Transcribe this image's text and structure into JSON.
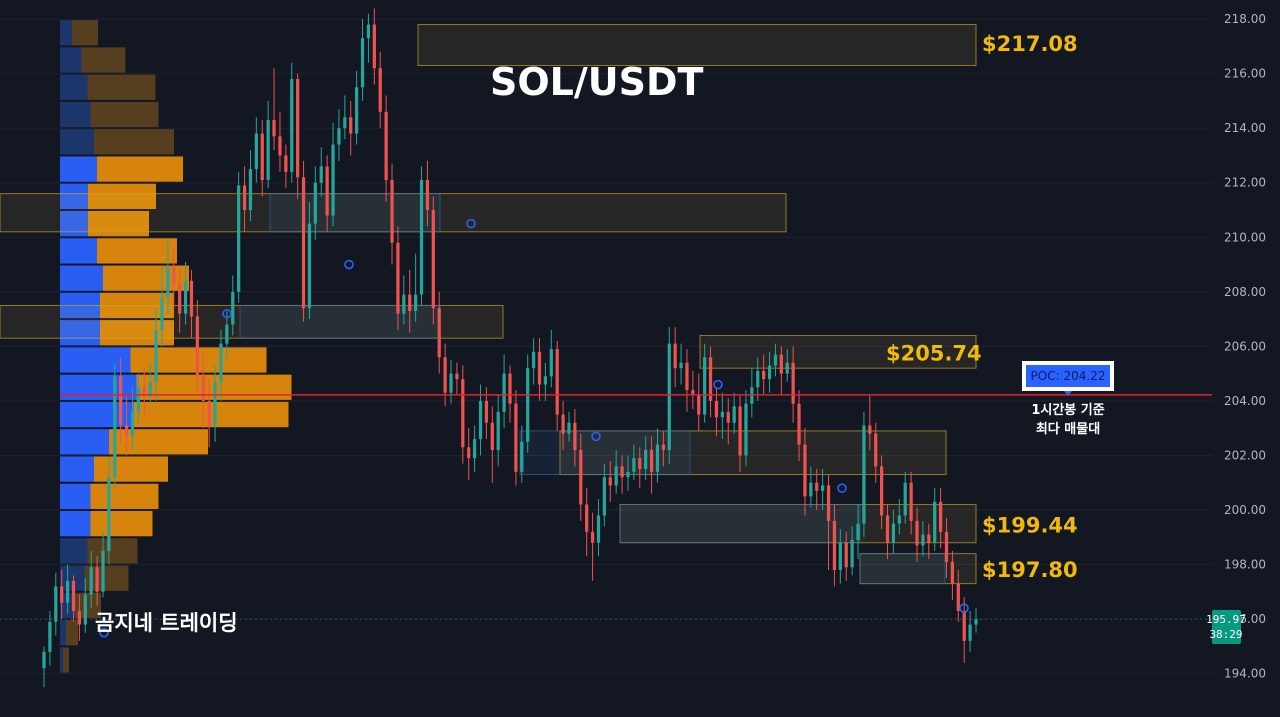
{
  "chart_data": {
    "type": "candlestick",
    "title": "SOL/USDT",
    "watermark": "곰지네 트레이딩",
    "y_axis": {
      "ticks": [
        "218.00",
        "216.00",
        "214.00",
        "212.00",
        "210.00",
        "208.00",
        "206.00",
        "204.00",
        "202.00",
        "200.00",
        "198.00",
        "196.00",
        "194.00"
      ],
      "range": [
        193.4,
        218.7
      ]
    },
    "current_price": {
      "value": "195.97",
      "countdown": "38:29",
      "color": "#089981"
    },
    "poc": {
      "label": "POC: 204.22",
      "value": 204.22,
      "note_line1": "1시간봉 기준",
      "note_line2": "최다 매물대",
      "line_color": "#e0232e"
    },
    "price_labels": [
      {
        "text": "$217.08",
        "value": 217.08
      },
      {
        "text": "$205.74",
        "value": 205.74
      },
      {
        "text": "$199.44",
        "value": 199.44
      },
      {
        "text": "$197.80",
        "value": 197.8
      }
    ],
    "resistance_zones": [
      {
        "top": 217.8,
        "bottom": 216.3
      },
      {
        "top": 211.6,
        "bottom": 210.2
      },
      {
        "top": 207.5,
        "bottom": 206.3
      },
      {
        "top": 206.4,
        "bottom": 205.2
      },
      {
        "top": 202.9,
        "bottom": 201.3
      },
      {
        "top": 200.2,
        "bottom": 198.8
      },
      {
        "top": 198.4,
        "bottom": 197.3
      }
    ],
    "liquidity_zones": [
      {
        "top": 211.6,
        "bottom": 210.2
      },
      {
        "top": 207.5,
        "bottom": 206.3
      },
      {
        "top": 202.9,
        "bottom": 201.3
      },
      {
        "top": 200.2,
        "bottom": 198.8
      },
      {
        "top": 198.4,
        "bottom": 197.3
      }
    ],
    "volume_profile": [
      {
        "price": 217.5,
        "buy": 24,
        "sell": 26
      },
      {
        "price": 216.5,
        "buy": 43,
        "sell": 44
      },
      {
        "price": 215.5,
        "buy": 55,
        "sell": 68
      },
      {
        "price": 214.5,
        "buy": 61,
        "sell": 68
      },
      {
        "price": 213.5,
        "buy": 68,
        "sell": 80
      },
      {
        "price": 212.5,
        "buy": 74,
        "sell": 86
      },
      {
        "price": 211.5,
        "buy": 56,
        "sell": 68
      },
      {
        "price": 210.5,
        "buy": 56,
        "sell": 61
      },
      {
        "price": 209.5,
        "buy": 74,
        "sell": 80
      },
      {
        "price": 208.5,
        "buy": 86,
        "sell": 86
      },
      {
        "price": 207.5,
        "buy": 80,
        "sell": 74
      },
      {
        "price": 206.5,
        "buy": 80,
        "sell": 74
      },
      {
        "price": 205.5,
        "buy": 141,
        "sell": 136
      },
      {
        "price": 204.5,
        "buy": 153,
        "sell": 155
      },
      {
        "price": 203.5,
        "buy": 147,
        "sell": 155
      },
      {
        "price": 202.5,
        "buy": 98,
        "sell": 99
      },
      {
        "price": 201.5,
        "buy": 68,
        "sell": 74
      },
      {
        "price": 200.5,
        "buy": 61,
        "sell": 68
      },
      {
        "price": 199.5,
        "buy": 61,
        "sell": 62
      },
      {
        "price": 198.5,
        "buy": 55,
        "sell": 50
      },
      {
        "price": 197.5,
        "buy": 49,
        "sell": 44
      },
      {
        "price": 196.5,
        "buy": 30,
        "sell": 26
      },
      {
        "price": 195.5,
        "buy": 12,
        "sell": 12
      },
      {
        "price": 194.5,
        "buy": 6,
        "sell": 6
      }
    ],
    "candles": [
      [
        194.2,
        194.8,
        193.5,
        195.0
      ],
      [
        194.8,
        195.9,
        194.3,
        196.3
      ],
      [
        195.9,
        197.2,
        195.4,
        197.7
      ],
      [
        197.2,
        196.6,
        196.0,
        197.8
      ],
      [
        196.6,
        197.4,
        196.2,
        198.0
      ],
      [
        197.4,
        196.3,
        195.9,
        197.6
      ],
      [
        196.3,
        195.8,
        195.2,
        196.9
      ],
      [
        195.8,
        196.9,
        195.5,
        197.5
      ],
      [
        196.9,
        197.9,
        196.4,
        198.5
      ],
      [
        197.9,
        197.0,
        196.5,
        198.3
      ],
      [
        197.0,
        198.5,
        196.8,
        199.2
      ],
      [
        198.5,
        201.2,
        198.0,
        201.9
      ],
      [
        201.2,
        204.9,
        200.8,
        205.4
      ],
      [
        204.9,
        203.1,
        202.4,
        205.6
      ],
      [
        203.1,
        202.7,
        202.0,
        204.2
      ],
      [
        202.7,
        203.6,
        202.2,
        204.5
      ],
      [
        203.6,
        204.5,
        203.2,
        205.0
      ],
      [
        204.5,
        204.2,
        203.4,
        205.2
      ],
      [
        204.2,
        204.7,
        203.9,
        205.4
      ],
      [
        204.7,
        206.6,
        204.0,
        207.4
      ],
      [
        206.6,
        207.8,
        206.0,
        208.9
      ],
      [
        207.8,
        208.9,
        207.2,
        209.9
      ],
      [
        208.9,
        208.3,
        207.4,
        209.6
      ],
      [
        208.3,
        207.2,
        206.5,
        208.9
      ],
      [
        207.2,
        208.4,
        206.8,
        209.1
      ],
      [
        208.4,
        207.1,
        206.3,
        208.8
      ],
      [
        207.1,
        204.9,
        204.3,
        207.7
      ],
      [
        204.9,
        204.0,
        203.0,
        205.7
      ],
      [
        204.0,
        203.1,
        202.3,
        204.8
      ],
      [
        203.1,
        204.7,
        202.5,
        205.3
      ],
      [
        204.7,
        206.1,
        204.0,
        206.6
      ],
      [
        206.1,
        206.8,
        205.5,
        207.3
      ],
      [
        206.8,
        208.0,
        206.4,
        208.6
      ],
      [
        208.0,
        211.9,
        207.6,
        212.4
      ],
      [
        211.9,
        211.0,
        210.2,
        212.6
      ],
      [
        211.0,
        212.5,
        210.6,
        213.2
      ],
      [
        212.5,
        213.8,
        212.0,
        214.4
      ],
      [
        213.8,
        212.1,
        211.5,
        214.3
      ],
      [
        212.1,
        214.3,
        211.8,
        215.0
      ],
      [
        214.3,
        213.7,
        213.2,
        216.2
      ],
      [
        213.7,
        213.0,
        212.4,
        214.6
      ],
      [
        213.0,
        212.4,
        211.8,
        213.4
      ],
      [
        212.4,
        215.8,
        212.0,
        216.4
      ],
      [
        215.8,
        212.2,
        211.4,
        216.0
      ],
      [
        212.2,
        207.4,
        206.9,
        212.8
      ],
      [
        207.4,
        210.5,
        207.0,
        211.3
      ],
      [
        210.5,
        212.0,
        209.9,
        212.6
      ],
      [
        212.0,
        212.6,
        211.5,
        213.3
      ],
      [
        212.6,
        210.8,
        210.2,
        213.0
      ],
      [
        210.8,
        213.4,
        210.4,
        214.2
      ],
      [
        213.4,
        214.0,
        212.8,
        214.7
      ],
      [
        214.0,
        214.4,
        213.6,
        215.2
      ],
      [
        214.4,
        213.8,
        213.0,
        215.0
      ],
      [
        213.8,
        215.5,
        213.4,
        216.1
      ],
      [
        215.5,
        217.3,
        215.0,
        218.0
      ],
      [
        217.3,
        217.8,
        216.4,
        218.2
      ],
      [
        217.8,
        216.2,
        215.6,
        218.4
      ],
      [
        216.2,
        214.6,
        214.0,
        216.8
      ],
      [
        214.6,
        212.1,
        211.3,
        215.2
      ],
      [
        212.1,
        209.8,
        209.0,
        212.7
      ],
      [
        209.8,
        207.2,
        206.6,
        210.4
      ],
      [
        207.2,
        207.9,
        206.8,
        208.6
      ],
      [
        207.9,
        207.3,
        206.5,
        208.8
      ],
      [
        207.3,
        207.9,
        206.9,
        209.4
      ],
      [
        207.9,
        212.1,
        207.5,
        212.6
      ],
      [
        212.1,
        211.0,
        210.4,
        212.8
      ],
      [
        211.0,
        207.4,
        206.8,
        211.5
      ],
      [
        207.4,
        205.6,
        205.0,
        208.0
      ],
      [
        205.6,
        204.3,
        203.8,
        206.1
      ],
      [
        204.3,
        205.0,
        203.9,
        205.5
      ],
      [
        205.0,
        204.8,
        204.2,
        205.4
      ],
      [
        204.8,
        202.3,
        201.7,
        205.3
      ],
      [
        202.3,
        201.9,
        201.1,
        203.0
      ],
      [
        201.9,
        202.6,
        201.4,
        203.1
      ],
      [
        202.6,
        204.0,
        202.0,
        204.6
      ],
      [
        204.0,
        203.2,
        202.6,
        204.5
      ],
      [
        203.2,
        202.2,
        201.0,
        203.8
      ],
      [
        202.2,
        203.6,
        201.6,
        204.2
      ],
      [
        203.6,
        205.0,
        203.0,
        205.7
      ],
      [
        205.0,
        203.9,
        203.2,
        205.3
      ],
      [
        203.9,
        201.4,
        200.9,
        204.4
      ],
      [
        201.4,
        202.5,
        201.0,
        203.1
      ],
      [
        202.5,
        205.2,
        202.1,
        205.7
      ],
      [
        205.2,
        205.8,
        204.6,
        206.3
      ],
      [
        205.8,
        204.6,
        204.0,
        206.3
      ],
      [
        204.6,
        204.9,
        204.0,
        205.4
      ],
      [
        204.9,
        205.9,
        204.5,
        206.6
      ],
      [
        205.9,
        203.5,
        202.9,
        206.2
      ],
      [
        203.5,
        202.8,
        202.2,
        204.0
      ],
      [
        202.8,
        203.2,
        202.5,
        203.6
      ],
      [
        203.2,
        202.2,
        201.6,
        203.7
      ],
      [
        202.2,
        200.2,
        199.6,
        202.8
      ],
      [
        200.2,
        199.2,
        198.3,
        200.8
      ],
      [
        199.2,
        198.8,
        197.4,
        199.9
      ],
      [
        198.8,
        199.8,
        198.3,
        200.4
      ],
      [
        199.8,
        201.2,
        199.4,
        201.7
      ],
      [
        201.2,
        200.9,
        200.3,
        201.8
      ],
      [
        200.9,
        201.6,
        200.6,
        202.2
      ],
      [
        201.6,
        201.2,
        200.6,
        202.0
      ],
      [
        201.2,
        201.4,
        200.7,
        202.0
      ],
      [
        201.4,
        201.9,
        201.1,
        202.4
      ],
      [
        201.9,
        201.5,
        200.8,
        202.3
      ],
      [
        201.5,
        202.2,
        201.1,
        202.7
      ],
      [
        202.2,
        201.4,
        200.6,
        202.7
      ],
      [
        201.4,
        202.4,
        201.0,
        203.0
      ],
      [
        202.4,
        202.2,
        201.6,
        202.9
      ],
      [
        202.2,
        206.1,
        201.7,
        206.7
      ],
      [
        206.1,
        205.2,
        204.5,
        206.7
      ],
      [
        205.2,
        205.4,
        204.6,
        206.1
      ],
      [
        205.4,
        204.4,
        203.6,
        205.9
      ],
      [
        204.4,
        204.2,
        203.7,
        205.1
      ],
      [
        204.2,
        203.5,
        202.9,
        205.0
      ],
      [
        203.5,
        205.6,
        203.2,
        206.1
      ],
      [
        205.6,
        204.0,
        203.4,
        206.0
      ],
      [
        204.0,
        203.4,
        202.7,
        204.5
      ],
      [
        203.4,
        203.6,
        202.6,
        204.3
      ],
      [
        203.6,
        203.2,
        202.4,
        204.1
      ],
      [
        203.2,
        203.8,
        202.8,
        204.3
      ],
      [
        203.8,
        202.0,
        201.4,
        204.2
      ],
      [
        202.0,
        203.9,
        201.6,
        204.4
      ],
      [
        203.9,
        204.5,
        203.4,
        205.2
      ],
      [
        204.5,
        205.1,
        204.0,
        205.6
      ],
      [
        205.1,
        204.8,
        204.2,
        205.7
      ],
      [
        204.8,
        205.3,
        204.3,
        205.8
      ],
      [
        205.3,
        205.7,
        204.9,
        206.1
      ],
      [
        205.7,
        205.0,
        204.2,
        206.0
      ],
      [
        205.0,
        205.4,
        204.7,
        205.9
      ],
      [
        205.4,
        203.9,
        203.2,
        206.0
      ],
      [
        203.9,
        202.4,
        201.8,
        204.4
      ],
      [
        202.4,
        200.5,
        199.8,
        203.0
      ],
      [
        200.5,
        201.0,
        200.1,
        201.6
      ],
      [
        201.0,
        200.7,
        200.0,
        201.5
      ],
      [
        200.7,
        200.9,
        200.0,
        201.5
      ],
      [
        200.9,
        199.6,
        197.8,
        201.3
      ],
      [
        199.6,
        197.8,
        197.2,
        200.2
      ],
      [
        197.8,
        198.8,
        197.3,
        199.3
      ],
      [
        198.8,
        197.9,
        197.4,
        199.2
      ],
      [
        197.9,
        198.9,
        197.6,
        199.4
      ],
      [
        198.9,
        199.5,
        198.2,
        200.2
      ],
      [
        199.5,
        203.1,
        199.0,
        203.6
      ],
      [
        203.1,
        202.8,
        202.2,
        204.2
      ],
      [
        202.8,
        201.6,
        201.0,
        203.2
      ],
      [
        201.6,
        199.8,
        199.3,
        202.0
      ],
      [
        199.8,
        198.8,
        198.2,
        200.2
      ],
      [
        198.8,
        199.5,
        198.4,
        200.0
      ],
      [
        199.5,
        199.8,
        199.1,
        200.4
      ],
      [
        199.8,
        201.0,
        199.5,
        201.4
      ],
      [
        201.0,
        199.6,
        199.1,
        201.4
      ],
      [
        199.6,
        198.7,
        198.1,
        200.1
      ],
      [
        198.7,
        199.1,
        198.3,
        199.6
      ],
      [
        199.1,
        198.8,
        198.2,
        199.5
      ],
      [
        198.8,
        200.3,
        198.5,
        200.8
      ],
      [
        200.3,
        199.2,
        198.6,
        200.8
      ],
      [
        199.2,
        198.1,
        197.5,
        199.7
      ],
      [
        198.1,
        197.3,
        196.7,
        198.5
      ],
      [
        197.3,
        196.3,
        195.9,
        197.8
      ],
      [
        196.3,
        195.2,
        194.4,
        196.8
      ],
      [
        195.2,
        195.8,
        194.8,
        196.3
      ],
      [
        195.8,
        196.0,
        195.5,
        196.4
      ]
    ]
  }
}
